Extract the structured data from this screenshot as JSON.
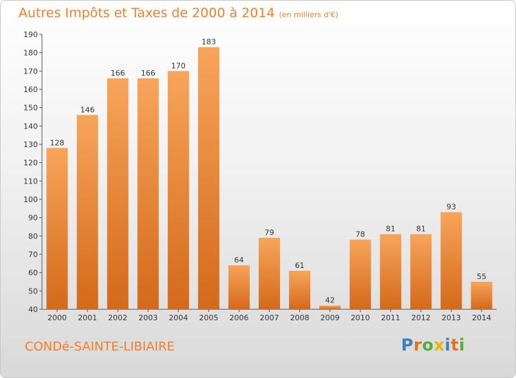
{
  "title": "Autres Impôts et Taxes de 2000 à 2014",
  "unit": "(en milliers d'€)",
  "location": "CONDé-SAINTE-LIBIAIRE",
  "logo_letters": [
    {
      "ch": "P",
      "color": "#3a7fc2"
    },
    {
      "ch": "r",
      "color": "#e2731b"
    },
    {
      "ch": "o",
      "color": "#5ba83c"
    },
    {
      "ch": "x",
      "color": "#e5b40f"
    },
    {
      "ch": "i",
      "color": "#3a7fc2"
    },
    {
      "ch": "t",
      "color": "#e2731b"
    },
    {
      "ch": "i",
      "color": "#5ba83c"
    }
  ],
  "colors": {
    "accent": "#f07f2a",
    "bar_top": "#f7a55b",
    "bar_bottom": "#d4691a"
  },
  "chart_data": {
    "type": "bar",
    "title": "Autres Impôts et Taxes de 2000 à 2014",
    "ylabel": "(en milliers d'€)",
    "categories": [
      "2000",
      "2001",
      "2002",
      "2003",
      "2004",
      "2005",
      "2006",
      "2007",
      "2008",
      "2009",
      "2010",
      "2011",
      "2012",
      "2013",
      "2014"
    ],
    "values": [
      128,
      146,
      166,
      166,
      170,
      183,
      64,
      79,
      61,
      42,
      78,
      81,
      81,
      93,
      55
    ],
    "ylim": [
      40,
      190
    ],
    "yticks": [
      40,
      50,
      60,
      70,
      80,
      90,
      100,
      110,
      120,
      130,
      140,
      150,
      160,
      170,
      180,
      190
    ],
    "grid": false
  }
}
